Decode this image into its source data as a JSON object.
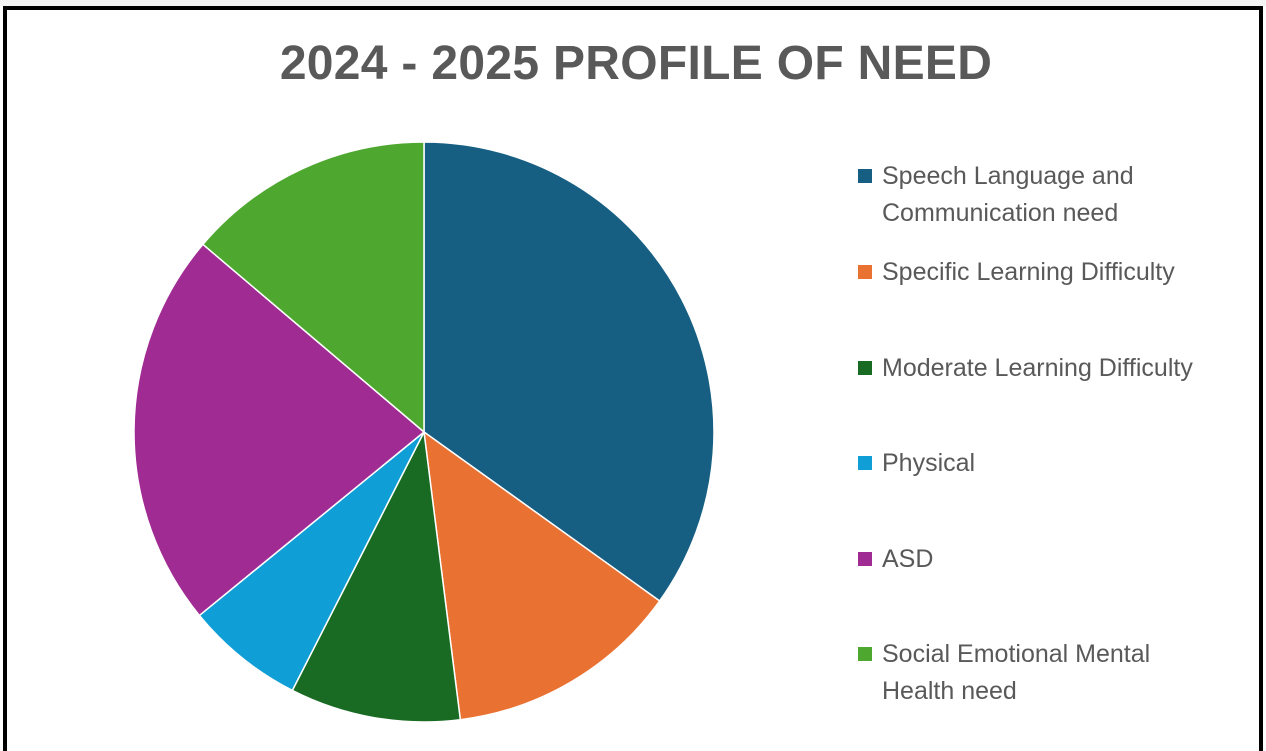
{
  "chart_data": {
    "type": "pie",
    "title": "2024 - 2025 PROFILE OF NEED",
    "legend_position": "right",
    "start_angle_deg": 0,
    "direction": "clockwise",
    "slices": [
      {
        "label": "Speech Language and Communication need",
        "value": 34.9,
        "color": "#175f82"
      },
      {
        "label": "Specific Learning Difficulty",
        "value": 13.1,
        "color": "#e97132"
      },
      {
        "label": "Moderate Learning Difficulty",
        "value": 9.5,
        "color": "#196b24"
      },
      {
        "label": "Physical",
        "value": 6.6,
        "color": "#0f9ed5"
      },
      {
        "label": "ASD",
        "value": 22.1,
        "color": "#a02b93"
      },
      {
        "label": "Social Emotional Mental Health need",
        "value": 13.8,
        "color": "#4ea72e"
      }
    ]
  }
}
